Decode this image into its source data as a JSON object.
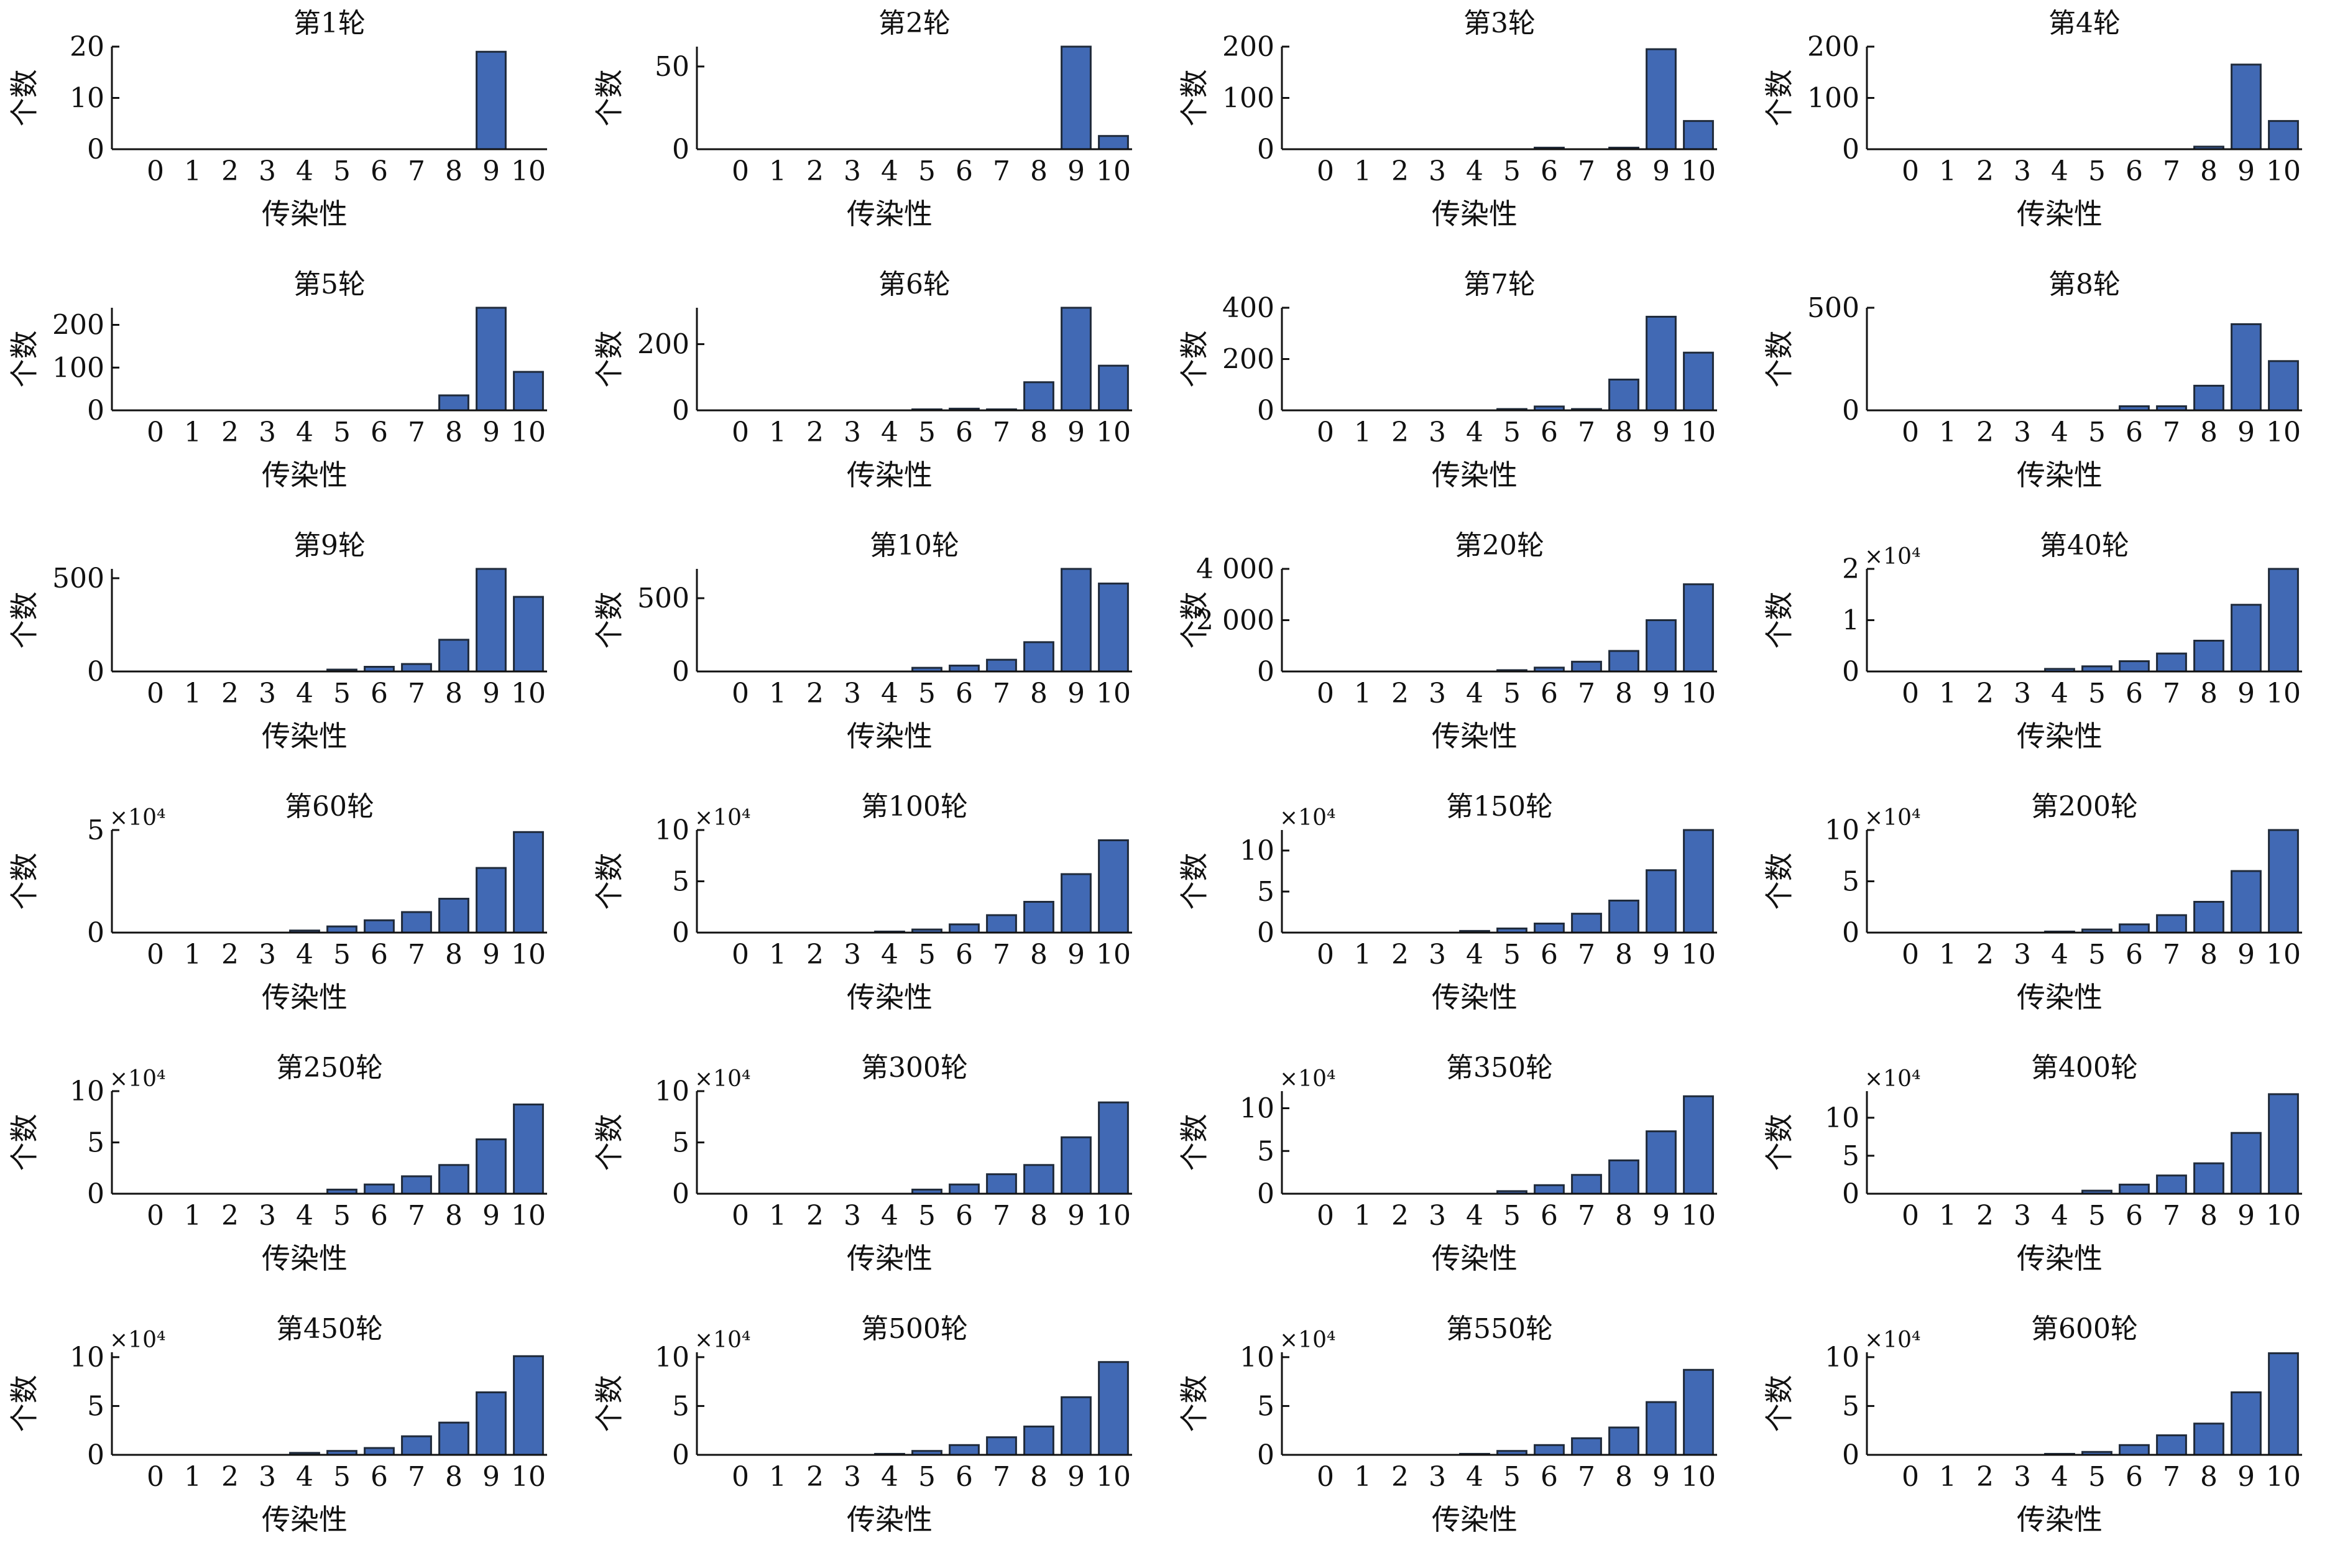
{
  "colors": {
    "bar_fill": "#4169b4",
    "bar_stroke": "#1f2a3a",
    "axis": "#111111"
  },
  "chart_data": [
    {
      "type": "bar",
      "title": "第1轮",
      "xlabel": "传染性",
      "ylabel": "个数",
      "multiplier": "",
      "categories": [
        "0",
        "1",
        "2",
        "3",
        "4",
        "5",
        "6",
        "7",
        "8",
        "9",
        "10"
      ],
      "values": [
        0,
        0,
        0,
        0,
        0,
        0,
        0,
        0,
        0,
        19,
        0
      ],
      "ylim": [
        0,
        20
      ],
      "yticks": [
        0,
        10,
        20
      ],
      "ytick_labels": [
        "0",
        "10",
        "20"
      ]
    },
    {
      "type": "bar",
      "title": "第2轮",
      "xlabel": "传染性",
      "ylabel": "个数",
      "multiplier": "",
      "categories": [
        "0",
        "1",
        "2",
        "3",
        "4",
        "5",
        "6",
        "7",
        "8",
        "9",
        "10"
      ],
      "values": [
        0,
        0,
        0,
        0,
        0,
        0,
        0,
        0,
        0,
        62,
        8
      ],
      "ylim": [
        0,
        62
      ],
      "yticks": [
        0,
        50
      ],
      "ytick_labels": [
        "0",
        "50"
      ]
    },
    {
      "type": "bar",
      "title": "第3轮",
      "xlabel": "传染性",
      "ylabel": "个数",
      "multiplier": "",
      "categories": [
        "0",
        "1",
        "2",
        "3",
        "4",
        "5",
        "6",
        "7",
        "8",
        "9",
        "10"
      ],
      "values": [
        0,
        0,
        0,
        0,
        0,
        0,
        3,
        0,
        3,
        195,
        55
      ],
      "ylim": [
        0,
        200
      ],
      "yticks": [
        0,
        100,
        200
      ],
      "ytick_labels": [
        "0",
        "100",
        "200"
      ]
    },
    {
      "type": "bar",
      "title": "第4轮",
      "xlabel": "传染性",
      "ylabel": "个数",
      "multiplier": "",
      "categories": [
        "0",
        "1",
        "2",
        "3",
        "4",
        "5",
        "6",
        "7",
        "8",
        "9",
        "10"
      ],
      "values": [
        0,
        0,
        0,
        0,
        0,
        0,
        0,
        0,
        5,
        165,
        55
      ],
      "ylim": [
        0,
        200
      ],
      "yticks": [
        0,
        100,
        200
      ],
      "ytick_labels": [
        "0",
        "100",
        "200"
      ]
    },
    {
      "type": "bar",
      "title": "第5轮",
      "xlabel": "传染性",
      "ylabel": "个数",
      "multiplier": "",
      "categories": [
        "0",
        "1",
        "2",
        "3",
        "4",
        "5",
        "6",
        "7",
        "8",
        "9",
        "10"
      ],
      "values": [
        0,
        0,
        0,
        0,
        0,
        0,
        0,
        0,
        35,
        240,
        90
      ],
      "ylim": [
        0,
        240
      ],
      "yticks": [
        0,
        100,
        200
      ],
      "ytick_labels": [
        "0",
        "100",
        "200"
      ]
    },
    {
      "type": "bar",
      "title": "第6轮",
      "xlabel": "传染性",
      "ylabel": "个数",
      "multiplier": "",
      "categories": [
        "0",
        "1",
        "2",
        "3",
        "4",
        "5",
        "6",
        "7",
        "8",
        "9",
        "10"
      ],
      "values": [
        0,
        0,
        0,
        0,
        0,
        3,
        5,
        3,
        85,
        310,
        135
      ],
      "ylim": [
        0,
        310
      ],
      "yticks": [
        0,
        200
      ],
      "ytick_labels": [
        "0",
        "200"
      ]
    },
    {
      "type": "bar",
      "title": "第7轮",
      "xlabel": "传染性",
      "ylabel": "个数",
      "multiplier": "",
      "categories": [
        "0",
        "1",
        "2",
        "3",
        "4",
        "5",
        "6",
        "7",
        "8",
        "9",
        "10"
      ],
      "values": [
        0,
        0,
        0,
        0,
        0,
        5,
        15,
        5,
        120,
        365,
        225
      ],
      "ylim": [
        0,
        400
      ],
      "yticks": [
        0,
        200,
        400
      ],
      "ytick_labels": [
        "0",
        "200",
        "400"
      ]
    },
    {
      "type": "bar",
      "title": "第8轮",
      "xlabel": "传染性",
      "ylabel": "个数",
      "multiplier": "",
      "categories": [
        "0",
        "1",
        "2",
        "3",
        "4",
        "5",
        "6",
        "7",
        "8",
        "9",
        "10"
      ],
      "values": [
        0,
        0,
        0,
        0,
        0,
        0,
        20,
        20,
        120,
        420,
        240
      ],
      "ylim": [
        0,
        500
      ],
      "yticks": [
        0,
        500
      ],
      "ytick_labels": [
        "0",
        "500"
      ]
    },
    {
      "type": "bar",
      "title": "第9轮",
      "xlabel": "传染性",
      "ylabel": "个数",
      "multiplier": "",
      "categories": [
        "0",
        "1",
        "2",
        "3",
        "4",
        "5",
        "6",
        "7",
        "8",
        "9",
        "10"
      ],
      "values": [
        0,
        0,
        0,
        0,
        0,
        10,
        25,
        40,
        170,
        550,
        400
      ],
      "ylim": [
        0,
        550
      ],
      "yticks": [
        0,
        500
      ],
      "ytick_labels": [
        "0",
        "500"
      ]
    },
    {
      "type": "bar",
      "title": "第10轮",
      "xlabel": "传染性",
      "ylabel": "个数",
      "multiplier": "",
      "categories": [
        "0",
        "1",
        "2",
        "3",
        "4",
        "5",
        "6",
        "7",
        "8",
        "9",
        "10"
      ],
      "values": [
        0,
        0,
        0,
        0,
        0,
        25,
        40,
        80,
        200,
        700,
        600
      ],
      "ylim": [
        0,
        700
      ],
      "yticks": [
        0,
        500
      ],
      "ytick_labels": [
        "0",
        "500"
      ]
    },
    {
      "type": "bar",
      "title": "第20轮",
      "xlabel": "传染性",
      "ylabel": "个数",
      "multiplier": "",
      "categories": [
        "0",
        "1",
        "2",
        "3",
        "4",
        "5",
        "6",
        "7",
        "8",
        "9",
        "10"
      ],
      "values": [
        0,
        0,
        0,
        0,
        0,
        50,
        150,
        380,
        800,
        2000,
        3400
      ],
      "ylim": [
        0,
        4000
      ],
      "yticks": [
        0,
        2000,
        4000
      ],
      "ytick_labels": [
        "0",
        "2 000",
        "4 000"
      ]
    },
    {
      "type": "bar",
      "title": "第40轮",
      "xlabel": "传染性",
      "ylabel": "个数",
      "multiplier": "×10⁴",
      "categories": [
        "0",
        "1",
        "2",
        "3",
        "4",
        "5",
        "6",
        "7",
        "8",
        "9",
        "10"
      ],
      "values": [
        0,
        0,
        0,
        0,
        0.05,
        0.1,
        0.2,
        0.35,
        0.6,
        1.3,
        2.0
      ],
      "ylim": [
        0,
        2
      ],
      "yticks": [
        0,
        1,
        2
      ],
      "ytick_labels": [
        "0",
        "1",
        "2"
      ]
    },
    {
      "type": "bar",
      "title": "第60轮",
      "xlabel": "传染性",
      "ylabel": "个数",
      "multiplier": "×10⁴",
      "categories": [
        "0",
        "1",
        "2",
        "3",
        "4",
        "5",
        "6",
        "7",
        "8",
        "9",
        "10"
      ],
      "values": [
        0,
        0,
        0,
        0,
        0.1,
        0.3,
        0.6,
        1.0,
        1.65,
        3.15,
        4.9
      ],
      "ylim": [
        0,
        5
      ],
      "yticks": [
        0,
        5
      ],
      "ytick_labels": [
        "0",
        "5"
      ]
    },
    {
      "type": "bar",
      "title": "第100轮",
      "xlabel": "传染性",
      "ylabel": "个数",
      "multiplier": "×10⁴",
      "categories": [
        "0",
        "1",
        "2",
        "3",
        "4",
        "5",
        "6",
        "7",
        "8",
        "9",
        "10"
      ],
      "values": [
        0,
        0,
        0,
        0,
        0.1,
        0.3,
        0.8,
        1.7,
        3.0,
        5.7,
        9.0
      ],
      "ylim": [
        0,
        10
      ],
      "yticks": [
        0,
        5,
        10
      ],
      "ytick_labels": [
        "0",
        "5",
        "10"
      ]
    },
    {
      "type": "bar",
      "title": "第150轮",
      "xlabel": "传染性",
      "ylabel": "个数",
      "multiplier": "×10⁴",
      "categories": [
        "0",
        "1",
        "2",
        "3",
        "4",
        "5",
        "6",
        "7",
        "8",
        "9",
        "10"
      ],
      "values": [
        0,
        0,
        0,
        0,
        0.2,
        0.5,
        1.1,
        2.3,
        3.9,
        7.6,
        12.5
      ],
      "ylim": [
        0,
        12.5
      ],
      "yticks": [
        0,
        5,
        10
      ],
      "ytick_labels": [
        "0",
        "5",
        "10"
      ]
    },
    {
      "type": "bar",
      "title": "第200轮",
      "xlabel": "传染性",
      "ylabel": "个数",
      "multiplier": "×10⁴",
      "categories": [
        "0",
        "1",
        "2",
        "3",
        "4",
        "5",
        "6",
        "7",
        "8",
        "9",
        "10"
      ],
      "values": [
        0,
        0,
        0,
        0,
        0.1,
        0.3,
        0.8,
        1.7,
        3.0,
        6.0,
        10.0
      ],
      "ylim": [
        0,
        10
      ],
      "yticks": [
        0,
        5,
        10
      ],
      "ytick_labels": [
        "0",
        "5",
        "10"
      ]
    },
    {
      "type": "bar",
      "title": "第250轮",
      "xlabel": "传染性",
      "ylabel": "个数",
      "multiplier": "×10⁴",
      "categories": [
        "0",
        "1",
        "2",
        "3",
        "4",
        "5",
        "6",
        "7",
        "8",
        "9",
        "10"
      ],
      "values": [
        0,
        0,
        0,
        0,
        0,
        0.4,
        0.9,
        1.7,
        2.8,
        5.3,
        8.7
      ],
      "ylim": [
        0,
        10
      ],
      "yticks": [
        0,
        5,
        10
      ],
      "ytick_labels": [
        "0",
        "5",
        "10"
      ]
    },
    {
      "type": "bar",
      "title": "第300轮",
      "xlabel": "传染性",
      "ylabel": "个数",
      "multiplier": "×10⁴",
      "categories": [
        "0",
        "1",
        "2",
        "3",
        "4",
        "5",
        "6",
        "7",
        "8",
        "9",
        "10"
      ],
      "values": [
        0,
        0,
        0,
        0,
        0,
        0.4,
        0.9,
        1.9,
        2.8,
        5.5,
        8.9
      ],
      "ylim": [
        0,
        10
      ],
      "yticks": [
        0,
        5,
        10
      ],
      "ytick_labels": [
        "0",
        "5",
        "10"
      ]
    },
    {
      "type": "bar",
      "title": "第350轮",
      "xlabel": "传染性",
      "ylabel": "个数",
      "multiplier": "×10⁴",
      "categories": [
        "0",
        "1",
        "2",
        "3",
        "4",
        "5",
        "6",
        "7",
        "8",
        "9",
        "10"
      ],
      "values": [
        0,
        0,
        0,
        0,
        0,
        0.3,
        1.0,
        2.2,
        3.9,
        7.3,
        11.4
      ],
      "ylim": [
        0,
        12
      ],
      "yticks": [
        0,
        5,
        10
      ],
      "ytick_labels": [
        "0",
        "5",
        "10"
      ]
    },
    {
      "type": "bar",
      "title": "第400轮",
      "xlabel": "传染性",
      "ylabel": "个数",
      "multiplier": "×10⁴",
      "categories": [
        "0",
        "1",
        "2",
        "3",
        "4",
        "5",
        "6",
        "7",
        "8",
        "9",
        "10"
      ],
      "values": [
        0,
        0,
        0,
        0,
        0,
        0.4,
        1.2,
        2.4,
        4.0,
        8.0,
        13.1
      ],
      "ylim": [
        0,
        13.5
      ],
      "yticks": [
        0,
        5,
        10
      ],
      "ytick_labels": [
        "0",
        "5",
        "10"
      ]
    },
    {
      "type": "bar",
      "title": "第450轮",
      "xlabel": "传染性",
      "ylabel": "个数",
      "multiplier": "×10⁴",
      "categories": [
        "0",
        "1",
        "2",
        "3",
        "4",
        "5",
        "6",
        "7",
        "8",
        "9",
        "10"
      ],
      "values": [
        0,
        0,
        0,
        0,
        0.2,
        0.4,
        0.7,
        1.9,
        3.3,
        6.4,
        10.1
      ],
      "ylim": [
        0,
        10.5
      ],
      "yticks": [
        0,
        5,
        10
      ],
      "ytick_labels": [
        "0",
        "5",
        "10"
      ]
    },
    {
      "type": "bar",
      "title": "第500轮",
      "xlabel": "传染性",
      "ylabel": "个数",
      "multiplier": "×10⁴",
      "categories": [
        "0",
        "1",
        "2",
        "3",
        "4",
        "5",
        "6",
        "7",
        "8",
        "9",
        "10"
      ],
      "values": [
        0,
        0,
        0,
        0,
        0.1,
        0.4,
        1.0,
        1.8,
        2.9,
        5.9,
        9.5
      ],
      "ylim": [
        0,
        10.5
      ],
      "yticks": [
        0,
        5,
        10
      ],
      "ytick_labels": [
        "0",
        "5",
        "10"
      ]
    },
    {
      "type": "bar",
      "title": "第550轮",
      "xlabel": "传染性",
      "ylabel": "个数",
      "multiplier": "×10⁴",
      "categories": [
        "0",
        "1",
        "2",
        "3",
        "4",
        "5",
        "6",
        "7",
        "8",
        "9",
        "10"
      ],
      "values": [
        0,
        0,
        0,
        0,
        0.1,
        0.4,
        1.0,
        1.7,
        2.8,
        5.4,
        8.7
      ],
      "ylim": [
        0,
        10.5
      ],
      "yticks": [
        0,
        5,
        10
      ],
      "ytick_labels": [
        "0",
        "5",
        "10"
      ]
    },
    {
      "type": "bar",
      "title": "第600轮",
      "xlabel": "传染性",
      "ylabel": "个数",
      "multiplier": "×10⁴",
      "categories": [
        "0",
        "1",
        "2",
        "3",
        "4",
        "5",
        "6",
        "7",
        "8",
        "9",
        "10"
      ],
      "values": [
        0,
        0,
        0,
        0,
        0.1,
        0.3,
        1.0,
        2.0,
        3.2,
        6.4,
        10.4
      ],
      "ylim": [
        0,
        10.5
      ],
      "yticks": [
        0,
        5,
        10
      ],
      "ytick_labels": [
        "0",
        "5",
        "10"
      ]
    }
  ]
}
